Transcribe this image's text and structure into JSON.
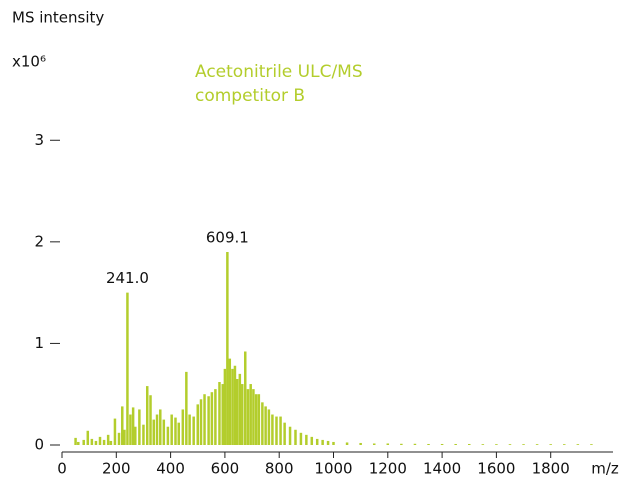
{
  "chart_data": {
    "type": "stick",
    "y_label": "MS intensity",
    "y_unit": "x10⁶",
    "x_label": "m/z",
    "legend": [
      "Acetonitrile ULC/MS",
      "competitor B"
    ],
    "color": "#b3cd2c",
    "xlim": [
      0,
      2000
    ],
    "xticks": [
      0,
      200,
      400,
      600,
      800,
      1000,
      1200,
      1400,
      1600,
      1800
    ],
    "ylim": [
      0,
      3.8
    ],
    "yticks": [
      0,
      1,
      2,
      3
    ],
    "annotations": [
      {
        "text": "241.0",
        "x": 241
      },
      {
        "text": "609.1",
        "x": 609.1
      }
    ],
    "x": [
      50,
      60,
      80,
      95,
      110,
      125,
      140,
      155,
      170,
      180,
      195,
      210,
      222,
      230,
      241,
      252,
      262,
      270,
      285,
      300,
      314,
      326,
      338,
      350,
      362,
      375,
      390,
      404,
      418,
      430,
      445,
      458,
      470,
      485,
      500,
      512,
      525,
      540,
      552,
      565,
      580,
      592,
      600,
      609.1,
      618,
      628,
      637,
      645,
      655,
      664,
      675,
      685,
      695,
      705,
      715,
      725,
      738,
      750,
      762,
      775,
      790,
      805,
      820,
      840,
      860,
      880,
      900,
      920,
      940,
      960,
      980,
      1000,
      1050,
      1100,
      1150,
      1200,
      1250,
      1300,
      1350,
      1400,
      1450,
      1500,
      1550,
      1600,
      1650,
      1700,
      1750,
      1800,
      1850,
      1900,
      1950
    ],
    "values": [
      0.07,
      0.03,
      0.05,
      0.14,
      0.06,
      0.04,
      0.08,
      0.05,
      0.1,
      0.04,
      0.26,
      0.12,
      0.38,
      0.15,
      1.5,
      0.3,
      0.37,
      0.18,
      0.35,
      0.2,
      0.58,
      0.49,
      0.25,
      0.3,
      0.35,
      0.25,
      0.18,
      0.3,
      0.27,
      0.22,
      0.35,
      0.72,
      0.3,
      0.28,
      0.4,
      0.45,
      0.5,
      0.48,
      0.52,
      0.55,
      0.62,
      0.6,
      0.75,
      1.9,
      0.85,
      0.75,
      0.78,
      0.65,
      0.7,
      0.6,
      0.92,
      0.55,
      0.6,
      0.55,
      0.5,
      0.5,
      0.42,
      0.38,
      0.35,
      0.3,
      0.28,
      0.28,
      0.22,
      0.18,
      0.15,
      0.12,
      0.1,
      0.08,
      0.06,
      0.05,
      0.04,
      0.03,
      0.025,
      0.02,
      0.015,
      0.015,
      0.012,
      0.012,
      0.01,
      0.01,
      0.01,
      0.01,
      0.008,
      0.008,
      0.008,
      0.008,
      0.008,
      0.008,
      0.008,
      0.008,
      0.008
    ]
  }
}
